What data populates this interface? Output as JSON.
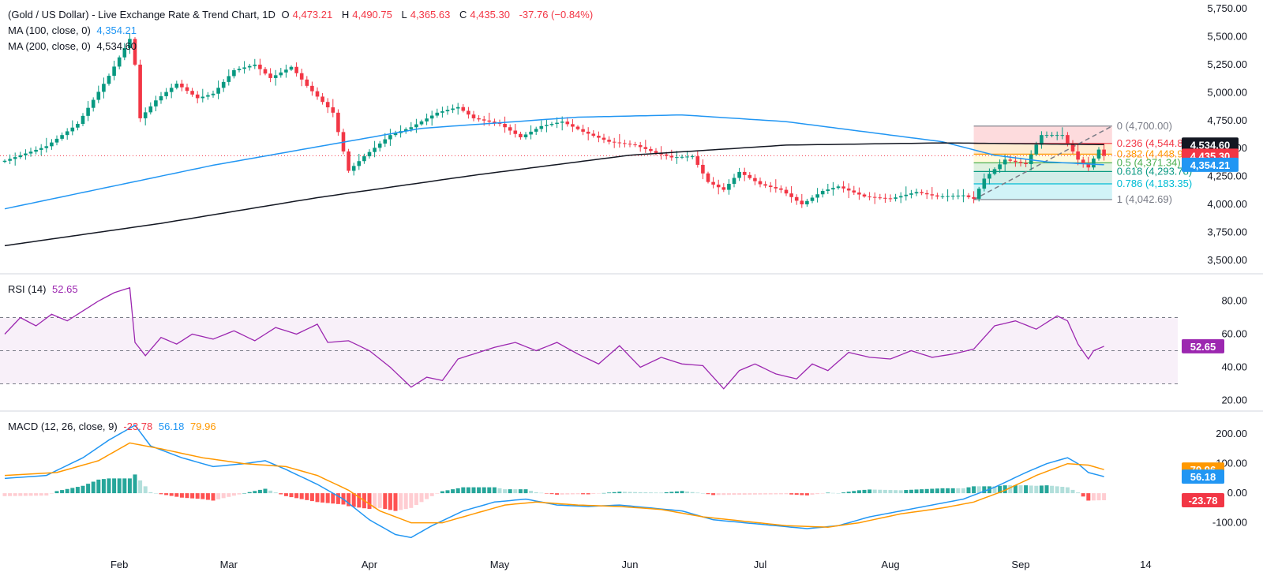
{
  "header": {
    "symbol": "(Gold / US Dollar) - Live Exchange Rate & Trend Chart, 1D",
    "o_label": "O",
    "o_value": "4,473.21",
    "h_label": "H",
    "h_value": "4,490.75",
    "l_label": "L",
    "l_value": "4,365.63",
    "c_label": "C",
    "c_value": "4,435.30",
    "change": "-37.76 (−0.84%)",
    "ma100_label": "MA (100, close, 0)",
    "ma100_value": "4,354.21",
    "ma200_label": "MA (200, close, 0)",
    "ma200_value": "4,534.60"
  },
  "rsi_legend": {
    "label": "RSI (14)",
    "value": "52.65"
  },
  "macd_legend": {
    "label": "MACD (12, 26, close, 9)",
    "hist": "-23.78",
    "macd": "56.18",
    "signal": "79.96"
  },
  "colors": {
    "up": "#089981",
    "down": "#f23645",
    "ma100": "#2196f3",
    "ma200": "#131722",
    "rsi": "#9c27b0",
    "macd": "#2196f3",
    "signal": "#ff9800"
  },
  "chart_data": [
    {
      "type": "candlestick",
      "title": "(Gold / US Dollar) - Live Exchange Rate & Trend Chart, 1D",
      "x_ticks": [
        "Feb",
        "Mar",
        "Apr",
        "May",
        "Jun",
        "Jul",
        "Aug",
        "Sep",
        "14"
      ],
      "ylim": [
        3400,
        5800
      ],
      "y_ticks": [
        "3,500.00",
        "3,750.00",
        "4,000.00",
        "4,250.00",
        "4,500.00",
        "4,750.00",
        "5,000.00",
        "5,250.00",
        "5,500.00",
        "5,750.00"
      ],
      "close_anchors": [
        [
          0,
          4390
        ],
        [
          8,
          4520
        ],
        [
          14,
          4720
        ],
        [
          20,
          5150
        ],
        [
          24,
          5480
        ],
        [
          25,
          5250
        ],
        [
          26,
          4770
        ],
        [
          29,
          4930
        ],
        [
          33,
          5080
        ],
        [
          37,
          4950
        ],
        [
          40,
          4990
        ],
        [
          44,
          5200
        ],
        [
          48,
          5250
        ],
        [
          51,
          5130
        ],
        [
          55,
          5230
        ],
        [
          58,
          5060
        ],
        [
          63,
          4820
        ],
        [
          66,
          4300
        ],
        [
          69,
          4430
        ],
        [
          74,
          4620
        ],
        [
          78,
          4690
        ],
        [
          83,
          4820
        ],
        [
          87,
          4870
        ],
        [
          90,
          4770
        ],
        [
          95,
          4720
        ],
        [
          99,
          4600
        ],
        [
          103,
          4700
        ],
        [
          107,
          4740
        ],
        [
          111,
          4650
        ],
        [
          116,
          4560
        ],
        [
          121,
          4530
        ],
        [
          125,
          4460
        ],
        [
          128,
          4420
        ],
        [
          132,
          4430
        ],
        [
          135,
          4200
        ],
        [
          138,
          4130
        ],
        [
          141,
          4290
        ],
        [
          145,
          4180
        ],
        [
          149,
          4130
        ],
        [
          153,
          4000
        ],
        [
          157,
          4120
        ],
        [
          160,
          4160
        ],
        [
          165,
          4070
        ],
        [
          170,
          4050
        ],
        [
          175,
          4110
        ],
        [
          179,
          4070
        ],
        [
          184,
          4080
        ],
        [
          186,
          4050
        ],
        [
          188,
          4230
        ],
        [
          192,
          4400
        ],
        [
          196,
          4360
        ],
        [
          199,
          4620
        ],
        [
          203,
          4620
        ],
        [
          206,
          4400
        ],
        [
          208,
          4330
        ],
        [
          210,
          4490
        ],
        [
          211,
          4435
        ]
      ],
      "ma100": [
        [
          0,
          3960
        ],
        [
          40,
          4350
        ],
        [
          80,
          4680
        ],
        [
          110,
          4780
        ],
        [
          130,
          4800
        ],
        [
          150,
          4740
        ],
        [
          180,
          4560
        ],
        [
          190,
          4440
        ],
        [
          200,
          4380
        ],
        [
          211,
          4354.21
        ]
      ],
      "ma200": [
        [
          0,
          3630
        ],
        [
          30,
          3830
        ],
        [
          60,
          4060
        ],
        [
          90,
          4260
        ],
        [
          120,
          4440
        ],
        [
          150,
          4530
        ],
        [
          180,
          4550
        ],
        [
          211,
          4534.6
        ]
      ],
      "current_price_line": 4435.3,
      "fib": {
        "start_index": 186,
        "end_index": 208,
        "levels": [
          {
            "ratio": "0",
            "value": 4700.0,
            "label": "0 (4,700.00)",
            "color": "#787b86",
            "fill": "#f23645"
          },
          {
            "ratio": "0.236",
            "value": 4544.87,
            "label": "0.236 (4,544.87)",
            "color": "#f23645",
            "fill": "#ff9800"
          },
          {
            "ratio": "0.382",
            "value": 4448.91,
            "label": "0.382 (4,448.91)",
            "color": "#ff9800",
            "fill": "#ffeb3b"
          },
          {
            "ratio": "0.5",
            "value": 4371.34,
            "label": "0.5 (4,371.34)",
            "color": "#4caf50",
            "fill": "#4caf50"
          },
          {
            "ratio": "0.618",
            "value": 4293.78,
            "label": "0.618 (4,293.78)",
            "color": "#089981",
            "fill": "#089981"
          },
          {
            "ratio": "0.786",
            "value": 4183.35,
            "label": "0.786 (4,183.35)",
            "color": "#00bcd4",
            "fill": "#00bcd4"
          },
          {
            "ratio": "1",
            "value": 4042.69,
            "label": "1 (4,042.69)",
            "color": "#787b86",
            "fill": "#787b86"
          }
        ]
      },
      "price_tags": [
        {
          "text": "4,534.60",
          "value": 4534.6,
          "bg": "#131722"
        },
        {
          "text": "4,435.30",
          "value": 4435.3,
          "bg": "#f23645"
        },
        {
          "text": "4,354.21",
          "value": 4354.21,
          "bg": "#2196f3"
        }
      ]
    },
    {
      "type": "line",
      "title": "RSI (14)",
      "ylim": [
        15,
        95
      ],
      "y_ticks": [
        "20.00",
        "40.00",
        "60.00",
        "80.00"
      ],
      "bands": [
        70,
        50,
        30
      ],
      "anchors": [
        [
          0,
          60
        ],
        [
          3,
          70
        ],
        [
          6,
          65
        ],
        [
          9,
          72
        ],
        [
          12,
          68
        ],
        [
          15,
          74
        ],
        [
          18,
          80
        ],
        [
          21,
          85
        ],
        [
          24,
          88
        ],
        [
          25,
          55
        ],
        [
          27,
          47
        ],
        [
          30,
          58
        ],
        [
          33,
          54
        ],
        [
          36,
          60
        ],
        [
          40,
          57
        ],
        [
          44,
          62
        ],
        [
          48,
          56
        ],
        [
          52,
          64
        ],
        [
          56,
          60
        ],
        [
          60,
          66
        ],
        [
          62,
          55
        ],
        [
          66,
          56
        ],
        [
          70,
          50
        ],
        [
          74,
          40
        ],
        [
          78,
          28
        ],
        [
          81,
          34
        ],
        [
          84,
          32
        ],
        [
          87,
          45
        ],
        [
          90,
          48
        ],
        [
          94,
          52
        ],
        [
          98,
          55
        ],
        [
          102,
          50
        ],
        [
          106,
          55
        ],
        [
          110,
          48
        ],
        [
          114,
          42
        ],
        [
          118,
          53
        ],
        [
          122,
          40
        ],
        [
          126,
          46
        ],
        [
          130,
          42
        ],
        [
          134,
          41
        ],
        [
          138,
          27
        ],
        [
          141,
          38
        ],
        [
          144,
          42
        ],
        [
          148,
          36
        ],
        [
          152,
          33
        ],
        [
          155,
          42
        ],
        [
          158,
          38
        ],
        [
          162,
          49
        ],
        [
          166,
          46
        ],
        [
          170,
          45
        ],
        [
          174,
          50
        ],
        [
          178,
          46
        ],
        [
          182,
          48
        ],
        [
          186,
          51
        ],
        [
          190,
          65
        ],
        [
          194,
          68
        ],
        [
          198,
          63
        ],
        [
          202,
          71
        ],
        [
          204,
          68
        ],
        [
          206,
          54
        ],
        [
          208,
          45
        ],
        [
          209,
          50
        ],
        [
          211,
          52.65
        ]
      ]
    },
    {
      "type": "line",
      "title": "MACD (12, 26, close, 9)",
      "ylim": [
        -200,
        270
      ],
      "y_ticks": [
        "-100.00",
        "0.00",
        "100.00",
        "200.00"
      ],
      "macd": [
        [
          0,
          50
        ],
        [
          8,
          60
        ],
        [
          15,
          120
        ],
        [
          20,
          180
        ],
        [
          25,
          230
        ],
        [
          28,
          160
        ],
        [
          34,
          120
        ],
        [
          40,
          90
        ],
        [
          46,
          100
        ],
        [
          50,
          110
        ],
        [
          54,
          80
        ],
        [
          60,
          30
        ],
        [
          65,
          -20
        ],
        [
          70,
          -90
        ],
        [
          75,
          -140
        ],
        [
          78,
          -150
        ],
        [
          82,
          -110
        ],
        [
          88,
          -60
        ],
        [
          94,
          -30
        ],
        [
          100,
          -20
        ],
        [
          106,
          -40
        ],
        [
          112,
          -45
        ],
        [
          118,
          -40
        ],
        [
          124,
          -50
        ],
        [
          130,
          -60
        ],
        [
          136,
          -90
        ],
        [
          142,
          -100
        ],
        [
          148,
          -110
        ],
        [
          154,
          -120
        ],
        [
          160,
          -110
        ],
        [
          166,
          -80
        ],
        [
          172,
          -60
        ],
        [
          178,
          -40
        ],
        [
          184,
          -20
        ],
        [
          190,
          20
        ],
        [
          196,
          70
        ],
        [
          200,
          100
        ],
        [
          204,
          120
        ],
        [
          206,
          100
        ],
        [
          208,
          70
        ],
        [
          211,
          56.18
        ]
      ],
      "signal": [
        [
          0,
          60
        ],
        [
          10,
          70
        ],
        [
          18,
          110
        ],
        [
          24,
          170
        ],
        [
          30,
          150
        ],
        [
          38,
          120
        ],
        [
          46,
          100
        ],
        [
          54,
          90
        ],
        [
          60,
          60
        ],
        [
          66,
          10
        ],
        [
          72,
          -60
        ],
        [
          78,
          -100
        ],
        [
          84,
          -100
        ],
        [
          90,
          -70
        ],
        [
          96,
          -40
        ],
        [
          102,
          -30
        ],
        [
          110,
          -40
        ],
        [
          118,
          -45
        ],
        [
          126,
          -55
        ],
        [
          134,
          -80
        ],
        [
          142,
          -95
        ],
        [
          150,
          -110
        ],
        [
          158,
          -115
        ],
        [
          164,
          -100
        ],
        [
          172,
          -70
        ],
        [
          180,
          -50
        ],
        [
          186,
          -30
        ],
        [
          192,
          10
        ],
        [
          198,
          60
        ],
        [
          204,
          100
        ],
        [
          208,
          95
        ],
        [
          211,
          79.96
        ]
      ]
    }
  ]
}
